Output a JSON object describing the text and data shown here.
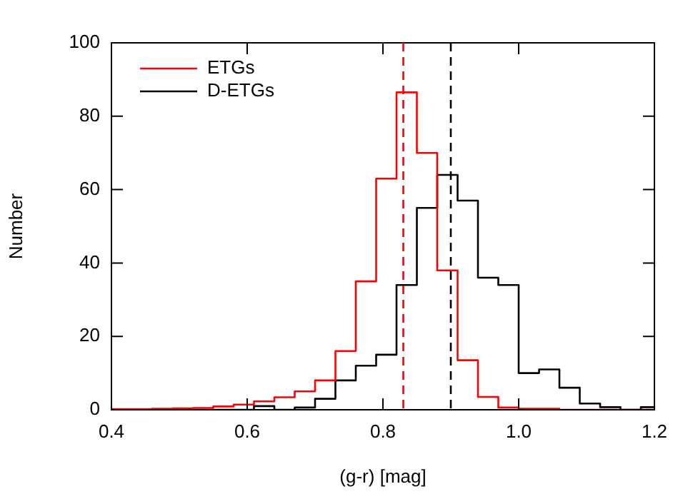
{
  "chart_data": {
    "type": "histogram",
    "xlabel": "(g-r) [mag]",
    "ylabel": "Number",
    "bins": [
      0.4,
      0.43,
      0.46,
      0.49,
      0.52,
      0.55,
      0.58,
      0.61,
      0.64,
      0.67,
      0.7,
      0.73,
      0.76,
      0.79,
      0.82,
      0.85,
      0.88,
      0.91,
      0.94,
      0.97,
      1.0,
      1.03,
      1.06,
      1.09,
      1.12,
      1.15,
      1.18,
      1.2
    ],
    "series": [
      {
        "name": "ETGs",
        "color": "#ff0000",
        "values": [
          0.2,
          0.2,
          0.3,
          0.4,
          0.5,
          0.9,
          1.4,
          2.3,
          3.4,
          5,
          8,
          16,
          35,
          63,
          86.5,
          70,
          38,
          13.5,
          3.5,
          0.6,
          0.3,
          0.3,
          0,
          0,
          0,
          0,
          0
        ]
      },
      {
        "name": "D-ETGs",
        "color": "#000000",
        "values": [
          0,
          0,
          0,
          0,
          0,
          0,
          0,
          1,
          0,
          0.6,
          3,
          8,
          12,
          15,
          34,
          55,
          64,
          57,
          36,
          34,
          10,
          11,
          6,
          1.7,
          0.7,
          0,
          0.7
        ]
      }
    ],
    "xlim": [
      0.4,
      1.2
    ],
    "xticks": [
      0.4,
      0.6,
      0.8,
      {
        "value": 1.0,
        "label": "1.0"
      },
      1.2
    ],
    "ylim": [
      0,
      100
    ],
    "yticks": [
      0,
      20,
      40,
      60,
      80,
      100
    ],
    "ref_lines": [
      {
        "axis": "x",
        "value": 0.83,
        "color": "#ff0000",
        "line_style": "dashed"
      },
      {
        "axis": "x",
        "value": 0.9,
        "color": "#000000",
        "line_style": "dashed"
      }
    ],
    "legend": "top left"
  }
}
